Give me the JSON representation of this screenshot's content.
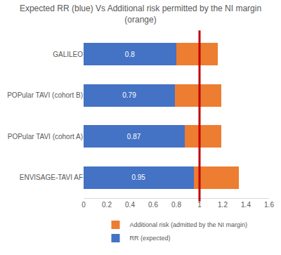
{
  "chart_data": {
    "type": "bar",
    "title": [
      "Expected RR (blue) Vs Additional risk permitted by the NI margin",
      "(orange)"
    ],
    "orientation": "horizontal",
    "stacked": true,
    "categories": [
      "GALILEO",
      "POPular TAVI (cohort B)",
      "POPular TAVI (cohort A)",
      "ENVISAGE-TAVI AF"
    ],
    "series": [
      {
        "name": "RR (expected)",
        "color": "#4472c4",
        "values": [
          0.8,
          0.79,
          0.87,
          0.95
        ],
        "data_labels": true
      },
      {
        "name": "Additional risk (admitted by the NI margin)",
        "color": "#ed7d31",
        "values": [
          0.36,
          0.4,
          0.32,
          0.39
        ]
      }
    ],
    "xlim": [
      0,
      1.6
    ],
    "xticks": [
      0,
      0.2,
      0.4,
      0.6,
      0.8,
      1,
      1.2,
      1.4,
      1.6
    ],
    "grid": false,
    "legend": "bottom",
    "reference_line": {
      "x": 1,
      "color": "#c00000"
    }
  }
}
